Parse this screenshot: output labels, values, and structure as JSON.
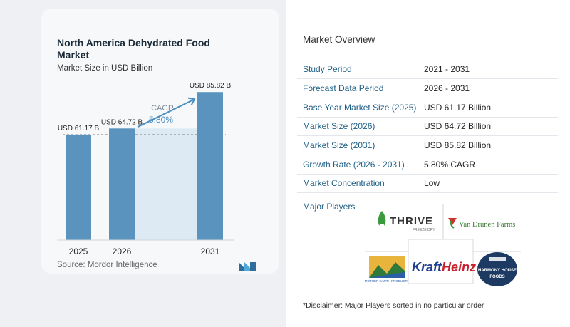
{
  "chart_data": {
    "type": "bar",
    "title": "North America Dehydrated Food Market",
    "subtitle": "Market Size in USD Billion",
    "categories": [
      "2025",
      "2026",
      "2031"
    ],
    "values": [
      61.17,
      64.72,
      85.82
    ],
    "data_labels": [
      "USD 61.17 B",
      "USD 64.72 B",
      "USD 85.82 B"
    ],
    "cagr_label": "CAGR",
    "cagr_value": "5.80%",
    "xlabel": "",
    "ylabel": "",
    "ylim": [
      0,
      95
    ],
    "grid": false,
    "colors": {
      "bar": "#5a93bd",
      "band": "#dde9f3",
      "arrow": "#4b8ec0",
      "cagr_text": "#4b8ec0"
    }
  },
  "source": "Source:  Mordor Intelligence",
  "overview": {
    "title": "Market Overview",
    "rows": [
      {
        "label": "Study Period",
        "value": "2021 - 2031"
      },
      {
        "label": "Forecast Data Period",
        "value": "2026 - 2031"
      },
      {
        "label": "Base Year Market Size (2025)",
        "value": "USD 61.17 Billion"
      },
      {
        "label": "Market Size (2026)",
        "value": "USD 64.72 Billion"
      },
      {
        "label": "Market Size (2031)",
        "value": "USD 85.82 Billion"
      },
      {
        "label": "Growth Rate (2026 - 2031)",
        "value": "5.80% CAGR"
      },
      {
        "label": "Market Concentration",
        "value": "Low"
      }
    ]
  },
  "major_players_label": "Major Players",
  "players": {
    "thrive": "THRIVE",
    "thrive_sub": "FREEZE DRY",
    "van_drunen": "Van Drunen Farms",
    "mother_earth": "MOTHER EARTH PRODUCTS",
    "kraft": "Kraft",
    "heinz": "Heinz",
    "harmony_line1": "HARMONY HOUSE",
    "harmony_line2": "FOODS"
  },
  "disclaimer": "*Disclaimer: Major Players sorted in no particular order"
}
